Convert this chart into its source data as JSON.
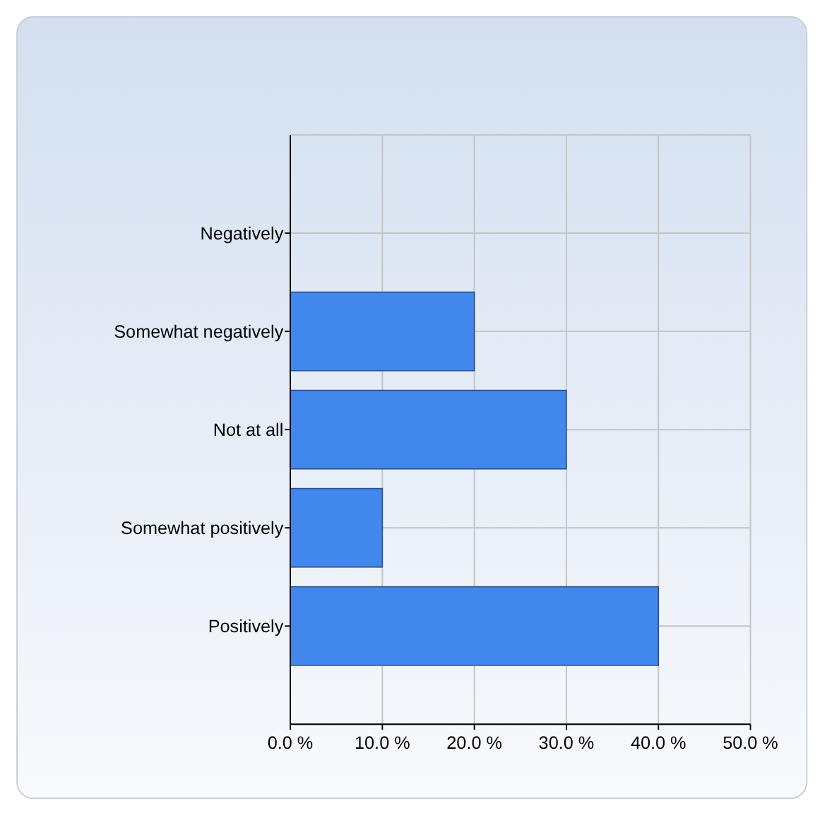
{
  "chart_data": {
    "type": "bar",
    "orientation": "horizontal",
    "categories": [
      "Negatively",
      "Somewhat negatively",
      "Not at all",
      "Somewhat positively",
      "Positively"
    ],
    "values": [
      0,
      20,
      30,
      10,
      40
    ],
    "color": "#4287ec",
    "xlim": [
      0,
      50
    ],
    "xticks": [
      {
        "value": 0,
        "label": "0.0 %"
      },
      {
        "value": 10,
        "label": "10.0 %"
      },
      {
        "value": 20,
        "label": "20.0 %"
      },
      {
        "value": 30,
        "label": "30.0 %"
      },
      {
        "value": 40,
        "label": "40.0 %"
      },
      {
        "value": 50,
        "label": "50.0 %"
      }
    ],
    "grid": true
  }
}
